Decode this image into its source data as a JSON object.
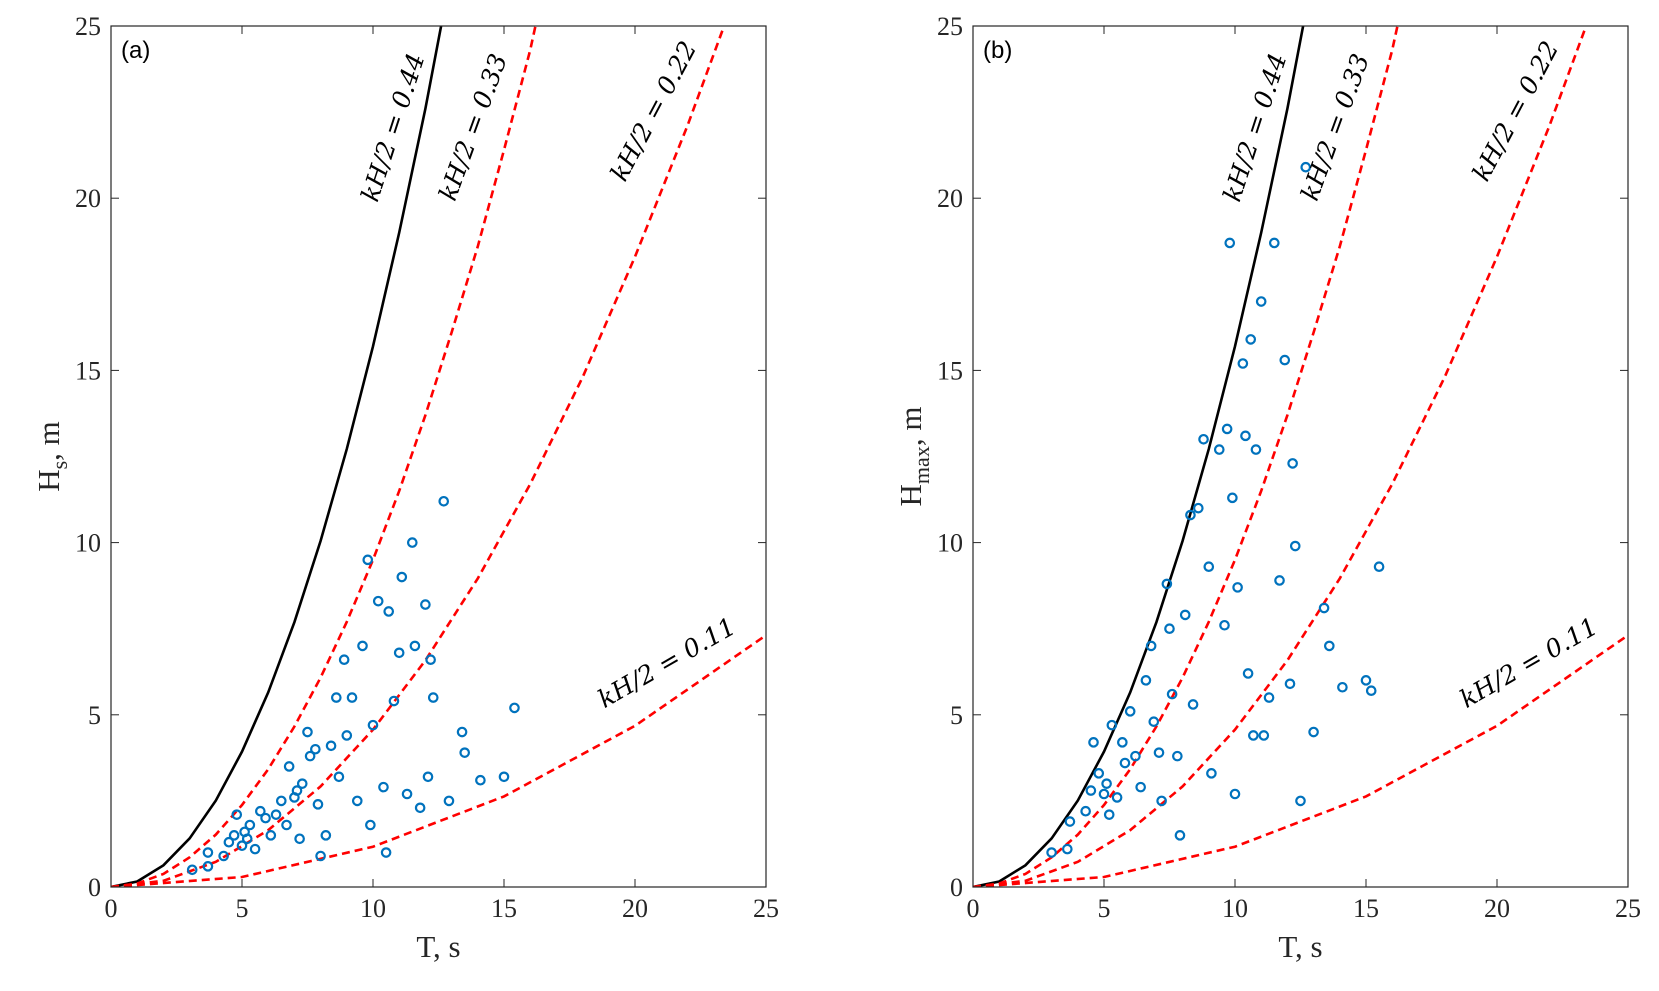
{
  "chart_data": [
    {
      "type": "scatter",
      "panel_label": "(a)",
      "xlabel": "T, s",
      "ylabel": "H",
      "ylabel_sub": "s",
      "ylabel_rest": ", m",
      "xlim": [
        0,
        25
      ],
      "ylim": [
        0,
        25
      ],
      "xticks": [
        0,
        5,
        10,
        15,
        20,
        25
      ],
      "yticks": [
        0,
        5,
        10,
        15,
        20,
        25
      ],
      "series": [
        {
          "type": "line",
          "name": "kH/2 = 0.44",
          "color": "#000000",
          "dashed": false,
          "x": [
            0,
            1,
            2,
            3,
            4,
            5,
            6,
            7,
            8,
            9,
            10,
            11,
            12,
            12.6
          ],
          "values": [
            0,
            0.16,
            0.63,
            1.41,
            2.51,
            3.93,
            5.65,
            7.69,
            10.05,
            12.72,
            15.7,
            19.0,
            22.6,
            25
          ]
        },
        {
          "type": "line",
          "name": "kH/2 = 0.33",
          "color": "#ff0000",
          "dashed": true,
          "x": [
            0,
            1,
            2,
            3,
            4,
            5,
            6,
            7,
            8,
            9,
            10,
            11,
            12,
            13,
            14,
            15,
            16,
            16.2
          ],
          "values": [
            0,
            0.1,
            0.38,
            0.86,
            1.52,
            2.38,
            3.42,
            4.66,
            6.08,
            7.7,
            9.5,
            11.5,
            13.7,
            16.1,
            18.6,
            21.4,
            24.3,
            25
          ]
        },
        {
          "type": "line",
          "name": "kH/2 = 0.22",
          "color": "#ff0000",
          "dashed": true,
          "x": [
            0,
            2,
            4,
            6,
            8,
            10,
            12,
            14,
            16,
            18,
            20,
            22,
            23.4
          ],
          "values": [
            0,
            0.18,
            0.73,
            1.65,
            2.92,
            4.57,
            6.58,
            8.96,
            11.7,
            14.8,
            18.3,
            22.1,
            25
          ]
        },
        {
          "type": "line",
          "name": "kH/2 = 0.11",
          "color": "#ff0000",
          "dashed": true,
          "x": [
            0,
            5,
            10,
            15,
            20,
            25
          ],
          "values": [
            0,
            0.29,
            1.17,
            2.63,
            4.68,
            7.31
          ]
        },
        {
          "type": "scatter",
          "color": "#0072bd",
          "x": [
            3.1,
            3.7,
            3.7,
            4.3,
            4.5,
            4.7,
            4.8,
            5.0,
            5.1,
            5.2,
            5.3,
            5.5,
            5.7,
            5.9,
            6.1,
            6.3,
            6.5,
            6.7,
            6.8,
            7.0,
            7.1,
            7.2,
            7.3,
            7.5,
            7.6,
            7.8,
            7.9,
            8.0,
            8.2,
            8.4,
            8.6,
            8.7,
            8.9,
            9.0,
            9.2,
            9.4,
            9.6,
            9.8,
            9.9,
            10.0,
            10.2,
            10.4,
            10.5,
            10.6,
            10.8,
            11.0,
            11.1,
            11.3,
            11.5,
            11.6,
            11.8,
            12.0,
            12.1,
            12.2,
            12.3,
            12.7,
            12.9,
            13.4,
            13.5,
            14.1,
            15.0,
            15.4
          ],
          "values": [
            0.5,
            0.6,
            1.0,
            0.9,
            1.3,
            1.5,
            2.1,
            1.2,
            1.6,
            1.4,
            1.8,
            1.1,
            2.2,
            2.0,
            1.5,
            2.1,
            2.5,
            1.8,
            3.5,
            2.6,
            2.8,
            1.4,
            3.0,
            4.5,
            3.8,
            4.0,
            2.4,
            0.9,
            1.5,
            4.1,
            5.5,
            3.2,
            6.6,
            4.4,
            5.5,
            2.5,
            7.0,
            9.5,
            1.8,
            4.7,
            8.3,
            2.9,
            1.0,
            8.0,
            5.4,
            6.8,
            9.0,
            2.7,
            10.0,
            7.0,
            2.3,
            8.2,
            3.2,
            6.6,
            5.5,
            11.2,
            2.5,
            4.5,
            3.9,
            3.1,
            3.2,
            5.2
          ]
        }
      ]
    },
    {
      "type": "scatter",
      "panel_label": "(b)",
      "xlabel": "T, s",
      "ylabel": "H",
      "ylabel_sub": "max",
      "ylabel_rest": ", m",
      "xlim": [
        0,
        25
      ],
      "ylim": [
        0,
        25
      ],
      "xticks": [
        0,
        5,
        10,
        15,
        20,
        25
      ],
      "yticks": [
        0,
        5,
        10,
        15,
        20,
        25
      ],
      "series": [
        {
          "type": "line",
          "name": "kH/2 = 0.44",
          "color": "#000000",
          "dashed": false,
          "x": [
            0,
            1,
            2,
            3,
            4,
            5,
            6,
            7,
            8,
            9,
            10,
            11,
            12,
            12.6
          ],
          "values": [
            0,
            0.16,
            0.63,
            1.41,
            2.51,
            3.93,
            5.65,
            7.69,
            10.05,
            12.72,
            15.7,
            19.0,
            22.6,
            25
          ]
        },
        {
          "type": "line",
          "name": "kH/2 = 0.33",
          "color": "#ff0000",
          "dashed": true,
          "x": [
            0,
            1,
            2,
            3,
            4,
            5,
            6,
            7,
            8,
            9,
            10,
            11,
            12,
            13,
            14,
            15,
            16,
            16.2
          ],
          "values": [
            0,
            0.1,
            0.38,
            0.86,
            1.52,
            2.38,
            3.42,
            4.66,
            6.08,
            7.7,
            9.5,
            11.5,
            13.7,
            16.1,
            18.6,
            21.4,
            24.3,
            25
          ]
        },
        {
          "type": "line",
          "name": "kH/2 = 0.22",
          "color": "#ff0000",
          "dashed": true,
          "x": [
            0,
            2,
            4,
            6,
            8,
            10,
            12,
            14,
            16,
            18,
            20,
            22,
            23.4
          ],
          "values": [
            0,
            0.18,
            0.73,
            1.65,
            2.92,
            4.57,
            6.58,
            8.96,
            11.7,
            14.8,
            18.3,
            22.1,
            25
          ]
        },
        {
          "type": "line",
          "name": "kH/2 = 0.11",
          "color": "#ff0000",
          "dashed": true,
          "x": [
            0,
            5,
            10,
            15,
            20,
            25
          ],
          "values": [
            0,
            0.29,
            1.17,
            2.63,
            4.68,
            7.31
          ]
        },
        {
          "type": "scatter",
          "color": "#0072bd",
          "x": [
            3.0,
            3.6,
            3.7,
            4.3,
            4.5,
            4.6,
            4.8,
            5.0,
            5.1,
            5.2,
            5.3,
            5.5,
            5.7,
            5.8,
            6.0,
            6.2,
            6.4,
            6.6,
            6.8,
            6.9,
            7.1,
            7.2,
            7.4,
            7.5,
            7.6,
            7.8,
            7.9,
            8.1,
            8.3,
            8.4,
            8.6,
            8.8,
            9.0,
            9.1,
            9.4,
            9.6,
            9.7,
            9.8,
            9.9,
            10.0,
            10.1,
            10.3,
            10.4,
            10.5,
            10.6,
            10.7,
            10.8,
            11.0,
            11.1,
            11.3,
            11.5,
            11.7,
            11.9,
            12.1,
            12.2,
            12.3,
            12.5,
            12.7,
            13.0,
            13.4,
            13.6,
            14.1,
            15.0,
            15.2,
            15.5
          ],
          "values": [
            1.0,
            1.1,
            1.9,
            2.2,
            2.8,
            4.2,
            3.3,
            2.7,
            3.0,
            2.1,
            4.7,
            2.6,
            4.2,
            3.6,
            5.1,
            3.8,
            2.9,
            6.0,
            7.0,
            4.8,
            3.9,
            2.5,
            8.8,
            7.5,
            5.6,
            3.8,
            1.5,
            7.9,
            10.8,
            5.3,
            11.0,
            13.0,
            9.3,
            3.3,
            12.7,
            7.6,
            13.3,
            18.7,
            11.3,
            2.7,
            8.7,
            15.2,
            13.1,
            6.2,
            15.9,
            4.4,
            12.7,
            17.0,
            4.4,
            5.5,
            18.7,
            8.9,
            15.3,
            5.9,
            12.3,
            9.9,
            2.5,
            20.9,
            4.5,
            8.1,
            7.0,
            5.8,
            6.0,
            5.7,
            9.3
          ]
        }
      ]
    }
  ]
}
